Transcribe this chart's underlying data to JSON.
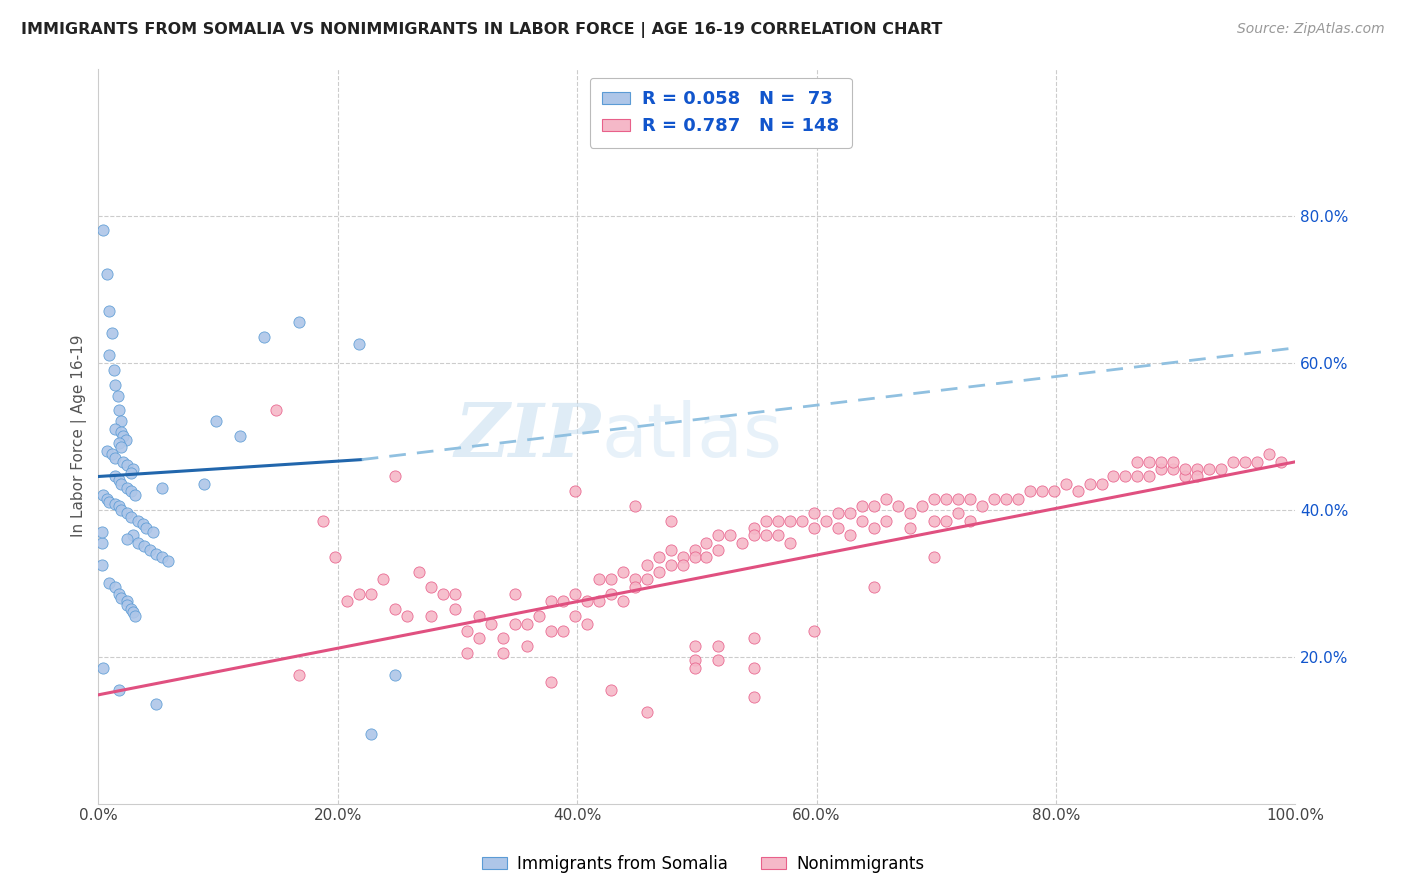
{
  "title": "IMMIGRANTS FROM SOMALIA VS NONIMMIGRANTS IN LABOR FORCE | AGE 16-19 CORRELATION CHART",
  "source": "Source: ZipAtlas.com",
  "ylabel": "In Labor Force | Age 16-19",
  "xlim": [
    0,
    1.0
  ],
  "ylim": [
    0,
    1.0
  ],
  "xticklabels": [
    "0.0%",
    "",
    "20.0%",
    "",
    "40.0%",
    "",
    "60.0%",
    "",
    "80.0%",
    "",
    "100.0%"
  ],
  "xtick_vals": [
    0.0,
    0.1,
    0.2,
    0.3,
    0.4,
    0.5,
    0.6,
    0.7,
    0.8,
    0.9,
    1.0
  ],
  "yticklabels_right": [
    "20.0%",
    "40.0%",
    "60.0%",
    "80.0%"
  ],
  "ytick_right_vals": [
    0.2,
    0.4,
    0.6,
    0.8
  ],
  "blue_R": 0.058,
  "blue_N": 73,
  "pink_R": 0.787,
  "pink_N": 148,
  "blue_fill": "#aec6e8",
  "blue_edge": "#5b9bd5",
  "pink_fill": "#f5b8c8",
  "pink_edge": "#e8608a",
  "blue_line_color": "#2166ac",
  "blue_dash_color": "#90c0e0",
  "pink_line_color": "#e05080",
  "legend_R_color": "#1155cc",
  "watermark_color": "#ddeeff",
  "blue_scatter": [
    [
      0.004,
      0.78
    ],
    [
      0.007,
      0.72
    ],
    [
      0.009,
      0.67
    ],
    [
      0.011,
      0.64
    ],
    [
      0.009,
      0.61
    ],
    [
      0.013,
      0.59
    ],
    [
      0.014,
      0.57
    ],
    [
      0.016,
      0.555
    ],
    [
      0.017,
      0.535
    ],
    [
      0.019,
      0.52
    ],
    [
      0.014,
      0.51
    ],
    [
      0.019,
      0.505
    ],
    [
      0.021,
      0.5
    ],
    [
      0.023,
      0.495
    ],
    [
      0.017,
      0.49
    ],
    [
      0.019,
      0.485
    ],
    [
      0.007,
      0.48
    ],
    [
      0.011,
      0.475
    ],
    [
      0.014,
      0.47
    ],
    [
      0.021,
      0.465
    ],
    [
      0.024,
      0.46
    ],
    [
      0.029,
      0.455
    ],
    [
      0.027,
      0.45
    ],
    [
      0.014,
      0.445
    ],
    [
      0.017,
      0.44
    ],
    [
      0.019,
      0.435
    ],
    [
      0.024,
      0.43
    ],
    [
      0.027,
      0.425
    ],
    [
      0.031,
      0.42
    ],
    [
      0.004,
      0.42
    ],
    [
      0.007,
      0.415
    ],
    [
      0.009,
      0.41
    ],
    [
      0.014,
      0.408
    ],
    [
      0.017,
      0.405
    ],
    [
      0.019,
      0.4
    ],
    [
      0.024,
      0.395
    ],
    [
      0.027,
      0.39
    ],
    [
      0.033,
      0.385
    ],
    [
      0.037,
      0.38
    ],
    [
      0.04,
      0.375
    ],
    [
      0.046,
      0.37
    ],
    [
      0.029,
      0.365
    ],
    [
      0.024,
      0.36
    ],
    [
      0.033,
      0.355
    ],
    [
      0.038,
      0.35
    ],
    [
      0.043,
      0.345
    ],
    [
      0.048,
      0.34
    ],
    [
      0.053,
      0.335
    ],
    [
      0.058,
      0.33
    ],
    [
      0.003,
      0.325
    ],
    [
      0.009,
      0.3
    ],
    [
      0.014,
      0.295
    ],
    [
      0.017,
      0.285
    ],
    [
      0.019,
      0.28
    ],
    [
      0.024,
      0.275
    ],
    [
      0.024,
      0.27
    ],
    [
      0.027,
      0.265
    ],
    [
      0.029,
      0.26
    ],
    [
      0.031,
      0.255
    ],
    [
      0.053,
      0.43
    ],
    [
      0.088,
      0.435
    ],
    [
      0.098,
      0.52
    ],
    [
      0.118,
      0.5
    ],
    [
      0.138,
      0.635
    ],
    [
      0.168,
      0.655
    ],
    [
      0.218,
      0.625
    ],
    [
      0.004,
      0.185
    ],
    [
      0.017,
      0.155
    ],
    [
      0.048,
      0.135
    ],
    [
      0.248,
      0.175
    ],
    [
      0.228,
      0.095
    ],
    [
      0.003,
      0.355
    ],
    [
      0.003,
      0.37
    ]
  ],
  "pink_scatter": [
    [
      0.148,
      0.535
    ],
    [
      0.168,
      0.175
    ],
    [
      0.188,
      0.385
    ],
    [
      0.198,
      0.335
    ],
    [
      0.208,
      0.275
    ],
    [
      0.218,
      0.285
    ],
    [
      0.228,
      0.285
    ],
    [
      0.238,
      0.305
    ],
    [
      0.248,
      0.265
    ],
    [
      0.258,
      0.255
    ],
    [
      0.268,
      0.315
    ],
    [
      0.278,
      0.295
    ],
    [
      0.278,
      0.255
    ],
    [
      0.288,
      0.285
    ],
    [
      0.298,
      0.285
    ],
    [
      0.298,
      0.265
    ],
    [
      0.308,
      0.235
    ],
    [
      0.308,
      0.205
    ],
    [
      0.318,
      0.255
    ],
    [
      0.318,
      0.225
    ],
    [
      0.328,
      0.245
    ],
    [
      0.338,
      0.225
    ],
    [
      0.338,
      0.205
    ],
    [
      0.348,
      0.285
    ],
    [
      0.348,
      0.245
    ],
    [
      0.358,
      0.245
    ],
    [
      0.358,
      0.215
    ],
    [
      0.368,
      0.255
    ],
    [
      0.378,
      0.275
    ],
    [
      0.378,
      0.235
    ],
    [
      0.388,
      0.275
    ],
    [
      0.388,
      0.235
    ],
    [
      0.398,
      0.285
    ],
    [
      0.398,
      0.255
    ],
    [
      0.408,
      0.275
    ],
    [
      0.408,
      0.245
    ],
    [
      0.418,
      0.305
    ],
    [
      0.418,
      0.275
    ],
    [
      0.428,
      0.305
    ],
    [
      0.428,
      0.285
    ],
    [
      0.438,
      0.315
    ],
    [
      0.438,
      0.275
    ],
    [
      0.448,
      0.305
    ],
    [
      0.448,
      0.295
    ],
    [
      0.458,
      0.325
    ],
    [
      0.458,
      0.305
    ],
    [
      0.468,
      0.335
    ],
    [
      0.468,
      0.315
    ],
    [
      0.478,
      0.345
    ],
    [
      0.478,
      0.325
    ],
    [
      0.488,
      0.335
    ],
    [
      0.488,
      0.325
    ],
    [
      0.498,
      0.345
    ],
    [
      0.498,
      0.335
    ],
    [
      0.508,
      0.355
    ],
    [
      0.508,
      0.335
    ],
    [
      0.518,
      0.365
    ],
    [
      0.518,
      0.345
    ],
    [
      0.528,
      0.365
    ],
    [
      0.538,
      0.355
    ],
    [
      0.548,
      0.375
    ],
    [
      0.548,
      0.365
    ],
    [
      0.558,
      0.385
    ],
    [
      0.558,
      0.365
    ],
    [
      0.568,
      0.385
    ],
    [
      0.568,
      0.365
    ],
    [
      0.578,
      0.385
    ],
    [
      0.578,
      0.355
    ],
    [
      0.588,
      0.385
    ],
    [
      0.598,
      0.395
    ],
    [
      0.598,
      0.375
    ],
    [
      0.608,
      0.385
    ],
    [
      0.618,
      0.395
    ],
    [
      0.618,
      0.375
    ],
    [
      0.628,
      0.395
    ],
    [
      0.628,
      0.365
    ],
    [
      0.638,
      0.405
    ],
    [
      0.638,
      0.385
    ],
    [
      0.648,
      0.405
    ],
    [
      0.648,
      0.375
    ],
    [
      0.658,
      0.415
    ],
    [
      0.658,
      0.385
    ],
    [
      0.668,
      0.405
    ],
    [
      0.678,
      0.395
    ],
    [
      0.678,
      0.375
    ],
    [
      0.688,
      0.405
    ],
    [
      0.698,
      0.415
    ],
    [
      0.698,
      0.385
    ],
    [
      0.708,
      0.415
    ],
    [
      0.708,
      0.385
    ],
    [
      0.718,
      0.415
    ],
    [
      0.718,
      0.395
    ],
    [
      0.728,
      0.415
    ],
    [
      0.728,
      0.385
    ],
    [
      0.738,
      0.405
    ],
    [
      0.748,
      0.415
    ],
    [
      0.758,
      0.415
    ],
    [
      0.768,
      0.415
    ],
    [
      0.778,
      0.425
    ],
    [
      0.788,
      0.425
    ],
    [
      0.798,
      0.425
    ],
    [
      0.808,
      0.435
    ],
    [
      0.818,
      0.425
    ],
    [
      0.828,
      0.435
    ],
    [
      0.838,
      0.435
    ],
    [
      0.848,
      0.445
    ],
    [
      0.858,
      0.445
    ],
    [
      0.868,
      0.445
    ],
    [
      0.878,
      0.445
    ],
    [
      0.888,
      0.455
    ],
    [
      0.898,
      0.455
    ],
    [
      0.908,
      0.445
    ],
    [
      0.918,
      0.455
    ],
    [
      0.928,
      0.455
    ],
    [
      0.938,
      0.455
    ],
    [
      0.948,
      0.465
    ],
    [
      0.958,
      0.465
    ],
    [
      0.968,
      0.465
    ],
    [
      0.978,
      0.475
    ],
    [
      0.988,
      0.465
    ],
    [
      0.868,
      0.465
    ],
    [
      0.878,
      0.465
    ],
    [
      0.888,
      0.465
    ],
    [
      0.898,
      0.465
    ],
    [
      0.908,
      0.455
    ],
    [
      0.918,
      0.445
    ],
    [
      0.648,
      0.295
    ],
    [
      0.458,
      0.125
    ],
    [
      0.498,
      0.215
    ],
    [
      0.498,
      0.195
    ],
    [
      0.518,
      0.215
    ],
    [
      0.518,
      0.195
    ],
    [
      0.548,
      0.225
    ],
    [
      0.498,
      0.185
    ],
    [
      0.548,
      0.185
    ],
    [
      0.248,
      0.445
    ],
    [
      0.398,
      0.425
    ],
    [
      0.448,
      0.405
    ],
    [
      0.478,
      0.385
    ],
    [
      0.378,
      0.165
    ],
    [
      0.428,
      0.155
    ],
    [
      0.548,
      0.145
    ],
    [
      0.598,
      0.235
    ],
    [
      0.698,
      0.335
    ]
  ],
  "blue_line_solid": {
    "x0": 0.0,
    "x1": 0.22,
    "y0": 0.445,
    "y1": 0.468
  },
  "blue_line_dash": {
    "x0": 0.22,
    "x1": 1.0,
    "y0": 0.468,
    "y1": 0.62
  },
  "pink_line": {
    "x0": 0.0,
    "x1": 1.0,
    "y0": 0.148,
    "y1": 0.465
  }
}
